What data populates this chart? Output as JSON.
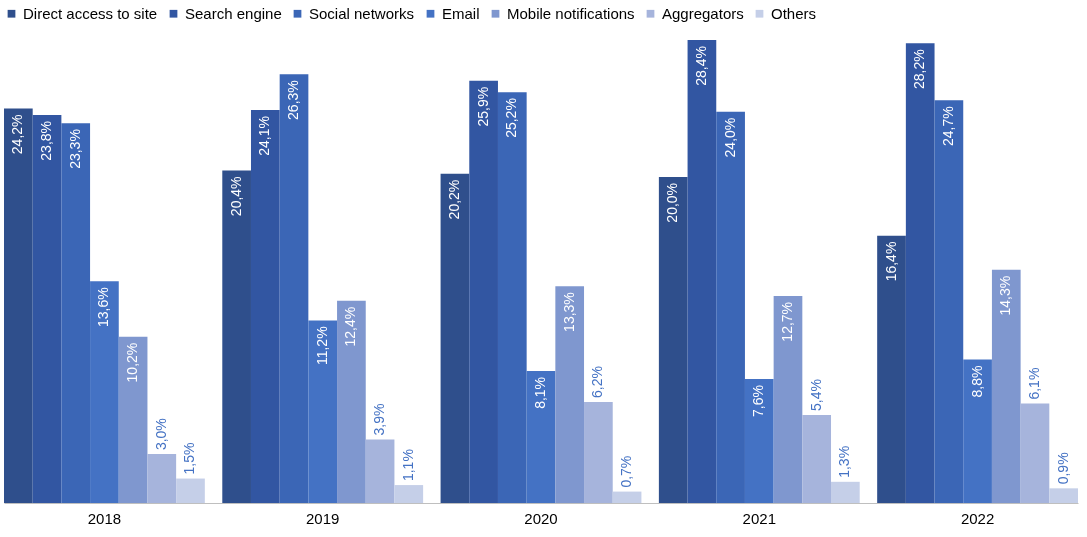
{
  "chart_data": {
    "type": "bar",
    "categories": [
      "2018",
      "2019",
      "2020",
      "2021",
      "2022"
    ],
    "series": [
      {
        "name": "Direct access to site",
        "color": "#2f4f8c",
        "values": [
          24.2,
          20.4,
          20.2,
          20.0,
          16.4
        ],
        "value_labels": [
          "24,2%",
          "20,4%",
          "20,2%",
          "20,0%",
          "16,4%"
        ]
      },
      {
        "name": "Search engine",
        "color": "#3256a2",
        "values": [
          23.8,
          24.1,
          25.9,
          28.4,
          28.2
        ],
        "value_labels": [
          "23,8%",
          "24,1%",
          "25,9%",
          "28,4%",
          "28,2%"
        ]
      },
      {
        "name": "Social networks",
        "color": "#3b66b6",
        "values": [
          23.3,
          26.3,
          25.2,
          24.0,
          24.7
        ],
        "value_labels": [
          "23,3%",
          "26,3%",
          "25,2%",
          "24,0%",
          "24,7%"
        ]
      },
      {
        "name": "Email",
        "color": "#4472c4",
        "values": [
          13.6,
          11.2,
          8.1,
          7.6,
          8.8
        ],
        "value_labels": [
          "13,6%",
          "11,2%",
          "8,1%",
          "7,6%",
          "8,8%"
        ]
      },
      {
        "name": "Mobile notifications",
        "color": "#7f97cf",
        "values": [
          10.2,
          12.4,
          13.3,
          12.7,
          14.3
        ],
        "value_labels": [
          "10,2%",
          "12,4%",
          "13,3%",
          "12,7%",
          "14,3%"
        ]
      },
      {
        "name": "Aggregators",
        "color": "#a6b4dc",
        "values": [
          3.0,
          3.9,
          6.2,
          5.4,
          6.1
        ],
        "value_labels": [
          "3,0%",
          "3,9%",
          "6,2%",
          "5,4%",
          "6,1%"
        ]
      },
      {
        "name": "Others",
        "color": "#c5cfe8",
        "values": [
          1.5,
          1.1,
          0.7,
          1.3,
          0.9
        ],
        "value_labels": [
          "1,5%",
          "1,1%",
          "0,7%",
          "1,3%",
          "0,9%"
        ]
      }
    ],
    "legend": "top"
  }
}
